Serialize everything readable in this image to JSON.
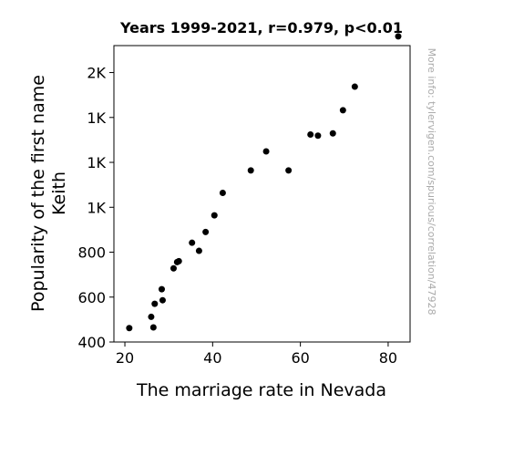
{
  "chart_data": {
    "type": "scatter",
    "title": "Years 1999-2021, r=0.979, p<0.01",
    "xlabel": "The marriage rate in Nevada",
    "ylabel_lines": [
      "Popularity of the first name",
      "Keith"
    ],
    "xlim": [
      17.5,
      85
    ],
    "ylim": [
      400,
      1720
    ],
    "x_ticks": [
      {
        "value": 20,
        "label": "20"
      },
      {
        "value": 40,
        "label": "40"
      },
      {
        "value": 60,
        "label": "60"
      },
      {
        "value": 80,
        "label": "80"
      }
    ],
    "y_ticks": [
      {
        "value": 400,
        "label": "400"
      },
      {
        "value": 600,
        "label": "600"
      },
      {
        "value": 800,
        "label": "800"
      },
      {
        "value": 1000,
        "label": "1K"
      },
      {
        "value": 1200,
        "label": "1K"
      },
      {
        "value": 1400,
        "label": "1K"
      },
      {
        "value": 1600,
        "label": "2K"
      }
    ],
    "grid": false,
    "marker_color": "#000000",
    "points": [
      {
        "x": 21.0,
        "y": 462
      },
      {
        "x": 26.0,
        "y": 512
      },
      {
        "x": 26.5,
        "y": 465
      },
      {
        "x": 26.8,
        "y": 570
      },
      {
        "x": 28.4,
        "y": 635
      },
      {
        "x": 28.6,
        "y": 586
      },
      {
        "x": 31.1,
        "y": 728
      },
      {
        "x": 31.9,
        "y": 756
      },
      {
        "x": 32.3,
        "y": 760
      },
      {
        "x": 35.3,
        "y": 842
      },
      {
        "x": 36.9,
        "y": 806
      },
      {
        "x": 38.4,
        "y": 890
      },
      {
        "x": 40.4,
        "y": 964
      },
      {
        "x": 42.3,
        "y": 1064
      },
      {
        "x": 48.7,
        "y": 1164
      },
      {
        "x": 52.2,
        "y": 1249
      },
      {
        "x": 57.3,
        "y": 1164
      },
      {
        "x": 62.3,
        "y": 1324
      },
      {
        "x": 64.0,
        "y": 1319
      },
      {
        "x": 67.4,
        "y": 1329
      },
      {
        "x": 69.7,
        "y": 1432
      },
      {
        "x": 72.4,
        "y": 1537
      },
      {
        "x": 82.3,
        "y": 1761
      }
    ]
  },
  "watermark": "More info: tylervigen.com/spurious/correlation/47928"
}
